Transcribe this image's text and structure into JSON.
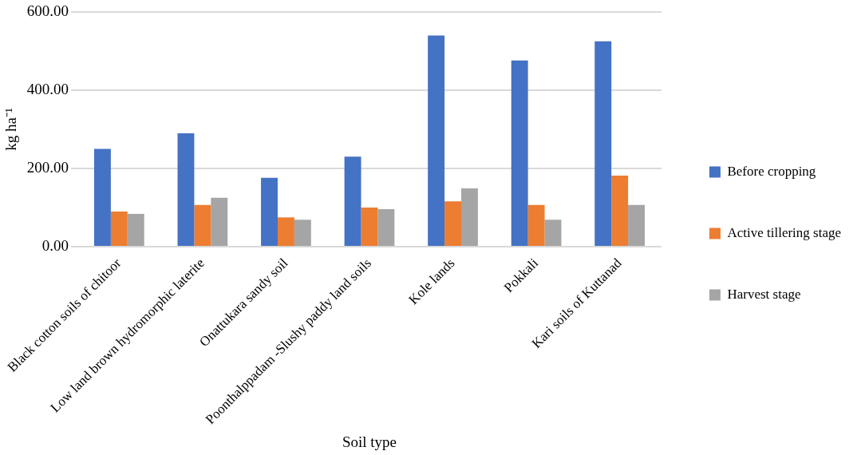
{
  "chart_data": {
    "type": "bar",
    "xlabel": "Soil type",
    "ylabel": "kg ha⁻¹",
    "categories": [
      "Black cotton soils of chitoor",
      "Low land brown hydromorphic laterite",
      "Onattukara sandy soil",
      "Poonthalppadam -Slushy paddy land soils",
      "Kole lands",
      "Pokkali",
      "Kari soils of Kuttanad"
    ],
    "series": [
      {
        "name": "Before cropping",
        "color": "#4472c4",
        "values": [
          250,
          290,
          176,
          230,
          540,
          476,
          525
        ]
      },
      {
        "name": "Active tillering stage",
        "color": "#ed7d31",
        "values": [
          90,
          107,
          75,
          100,
          116,
          107,
          182
        ]
      },
      {
        "name": "Harvest stage",
        "color": "#a5a5a5",
        "values": [
          84,
          125,
          69,
          96,
          149,
          69,
          107
        ]
      }
    ],
    "ylim": [
      0,
      600
    ],
    "yticks": [
      {
        "value": 0,
        "label": "0.00"
      },
      {
        "value": 200,
        "label": "200.00"
      },
      {
        "value": 400,
        "label": "400.00"
      },
      {
        "value": 600,
        "label": "600.00"
      }
    ],
    "grid": "y",
    "legend": "right"
  }
}
